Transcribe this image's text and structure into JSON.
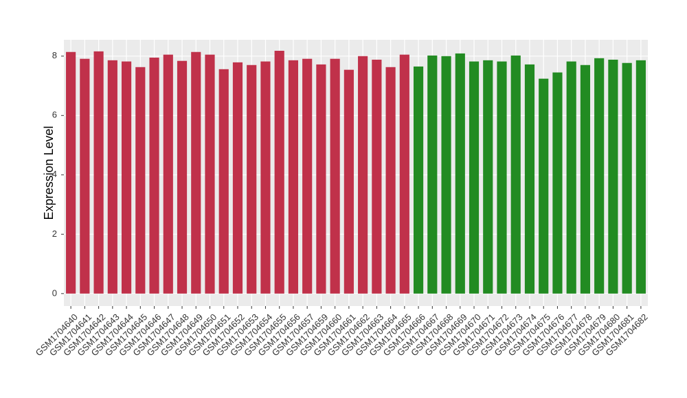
{
  "chart_data": {
    "type": "bar",
    "y_label": "Expression Level",
    "categories": [
      "GSM1704640",
      "GSM1704641",
      "GSM1704642",
      "GSM1704643",
      "GSM1704644",
      "GSM1704645",
      "GSM1704646",
      "GSM1704647",
      "GSM1704648",
      "GSM1704649",
      "GSM1704650",
      "GSM1704651",
      "GSM1704652",
      "GSM1704653",
      "GSM1704654",
      "GSM1704655",
      "GSM1704656",
      "GSM1704657",
      "GSM1704659",
      "GSM1704660",
      "GSM1704661",
      "GSM1704662",
      "GSM1704663",
      "GSM1704664",
      "GSM1704665",
      "GSM1704666",
      "GSM1704667",
      "GSM1704668",
      "GSM1704669",
      "GSM1704670",
      "GSM1704671",
      "GSM1704672",
      "GSM1704673",
      "GSM1704674",
      "GSM1704675",
      "GSM1704676",
      "GSM1704677",
      "GSM1704678",
      "GSM1704679",
      "GSM1704680",
      "GSM1704681",
      "GSM1704682"
    ],
    "values": [
      8.14,
      7.91,
      8.16,
      7.86,
      7.82,
      7.63,
      7.95,
      8.05,
      7.84,
      8.14,
      8.05,
      7.56,
      7.79,
      7.7,
      7.82,
      8.18,
      7.86,
      7.91,
      7.72,
      7.91,
      7.54,
      8.0,
      7.88,
      7.63,
      8.05,
      7.65,
      8.02,
      8.0,
      8.09,
      7.82,
      7.86,
      7.82,
      8.02,
      7.72,
      7.24,
      7.45,
      7.82,
      7.7,
      7.93,
      7.88,
      7.77,
      7.86
    ],
    "colors": [
      "#c0314a",
      "#c0314a",
      "#c0314a",
      "#c0314a",
      "#c0314a",
      "#c0314a",
      "#c0314a",
      "#c0314a",
      "#c0314a",
      "#c0314a",
      "#c0314a",
      "#c0314a",
      "#c0314a",
      "#c0314a",
      "#c0314a",
      "#c0314a",
      "#c0314a",
      "#c0314a",
      "#c0314a",
      "#c0314a",
      "#c0314a",
      "#c0314a",
      "#c0314a",
      "#c0314a",
      "#c0314a",
      "#228b22",
      "#228b22",
      "#228b22",
      "#228b22",
      "#228b22",
      "#228b22",
      "#228b22",
      "#228b22",
      "#228b22",
      "#228b22",
      "#228b22",
      "#228b22",
      "#228b22",
      "#228b22",
      "#228b22",
      "#228b22",
      "#228b22"
    ],
    "ylim": [
      -0.42,
      8.55
    ],
    "yticks": [
      0,
      2,
      4,
      6,
      8
    ],
    "grid": true
  }
}
